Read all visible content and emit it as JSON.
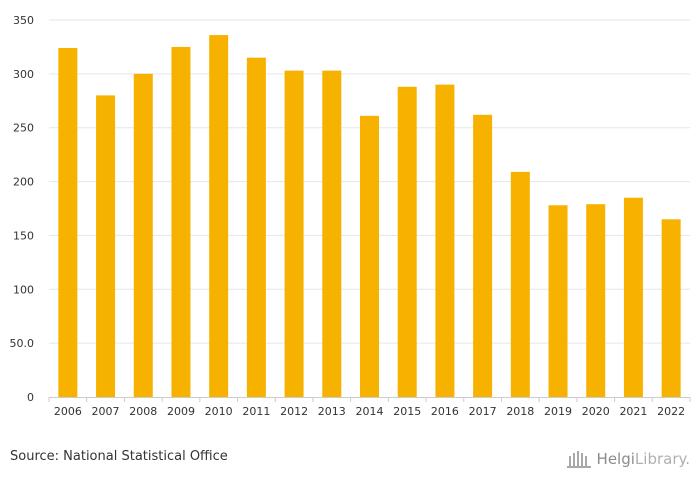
{
  "chart_data": {
    "type": "bar",
    "categories": [
      "2006",
      "2007",
      "2008",
      "2009",
      "2010",
      "2011",
      "2012",
      "2013",
      "2014",
      "2015",
      "2016",
      "2017",
      "2018",
      "2019",
      "2020",
      "2021",
      "2022"
    ],
    "values": [
      324,
      280,
      300,
      325,
      336,
      315,
      303,
      303,
      261,
      288,
      290,
      262,
      209,
      178,
      179,
      185,
      165
    ],
    "ylim": [
      0,
      350
    ],
    "yticks": [
      0,
      50,
      100,
      150,
      200,
      250,
      300,
      350
    ],
    "ytick_labels": [
      "0",
      "50.0",
      "100",
      "150",
      "200",
      "250",
      "300",
      "350"
    ],
    "grid": true,
    "bar_color": "#f7b200",
    "grid_color": "#e6e6e6"
  },
  "footer": {
    "source": "Source: National Statistical Office",
    "logo_main": "Helgi",
    "logo_sub": "Library."
  }
}
